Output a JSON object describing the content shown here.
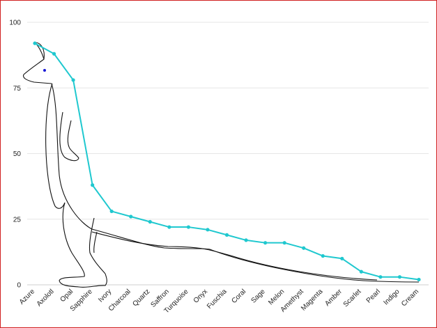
{
  "chart_data": {
    "type": "line",
    "title": "",
    "xlabel": "",
    "ylabel": "",
    "ylim": [
      0,
      100
    ],
    "yticks": [
      0,
      25,
      50,
      75,
      100
    ],
    "grid": true,
    "categories": [
      "Azure",
      "Axolotl",
      "Opal",
      "Sapphire",
      "Ivory",
      "Charcoal",
      "Quartz",
      "Saffron",
      "Turquoise",
      "Onyx",
      "Fuschia",
      "Coral",
      "Sage",
      "Melon",
      "Amethyst",
      "Magenta",
      "Amber",
      "Scarlet",
      "Pearl",
      "Indigo",
      "Cream"
    ],
    "series": [
      {
        "values": [
          92,
          88,
          78,
          38,
          28,
          26,
          24,
          22,
          22,
          21,
          19,
          17,
          16,
          16,
          14,
          11,
          10,
          5,
          3,
          3,
          2
        ],
        "color": "#1fc8cf"
      }
    ],
    "decoration": "kangaroo-outline",
    "decoration_eye_color": "#1a1ad6"
  }
}
